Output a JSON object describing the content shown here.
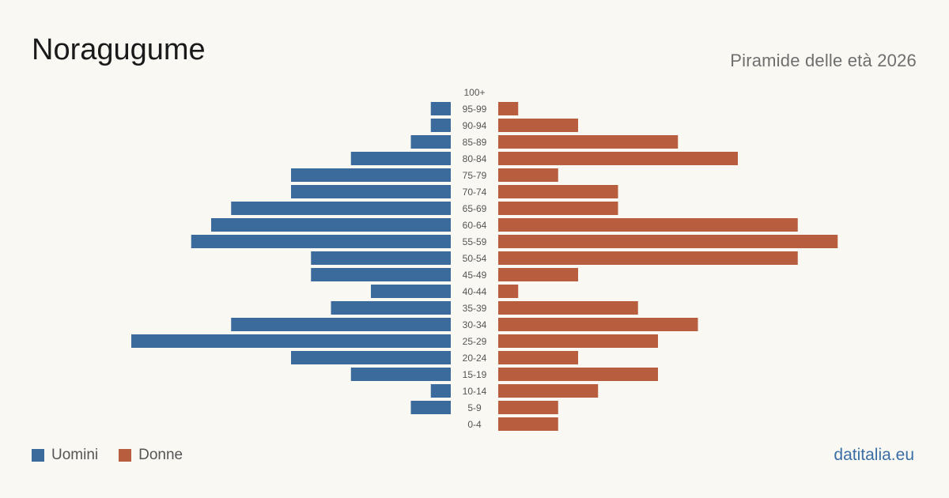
{
  "header": {
    "title": "Noragugume",
    "subtitle": "Piramide delle età 2026"
  },
  "legend": {
    "men_label": "Uomini",
    "women_label": "Donne"
  },
  "footer": {
    "source": "datitalia.eu"
  },
  "colors": {
    "men": "#3b6a9c",
    "women": "#b85e3e",
    "tick_label": "#555555"
  },
  "chart_data": {
    "type": "bar",
    "orientation": "horizontal-pyramid",
    "categories": [
      "100+",
      "95-99",
      "90-94",
      "85-89",
      "80-84",
      "75-79",
      "70-74",
      "65-69",
      "60-64",
      "55-59",
      "50-54",
      "45-49",
      "40-44",
      "35-39",
      "30-34",
      "25-29",
      "20-24",
      "15-19",
      "10-14",
      "5-9",
      "0-4"
    ],
    "series": [
      {
        "name": "Uomini",
        "values": [
          0,
          1,
          1,
          2,
          5,
          8,
          8,
          11,
          12,
          13,
          7,
          7,
          4,
          6,
          11,
          16,
          8,
          5,
          1,
          2,
          0
        ]
      },
      {
        "name": "Donne",
        "values": [
          0,
          1,
          4,
          9,
          12,
          3,
          6,
          6,
          15,
          17,
          15,
          4,
          1,
          7,
          10,
          8,
          4,
          8,
          5,
          3,
          3
        ]
      }
    ],
    "xlim": [
      0,
      17
    ],
    "grid": false,
    "legend_position": "bottom-left"
  }
}
